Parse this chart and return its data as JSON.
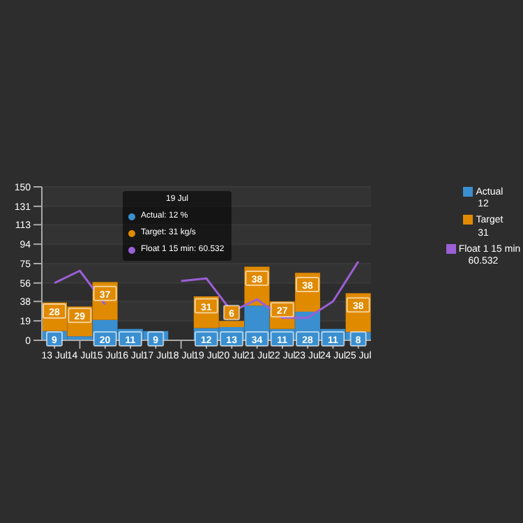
{
  "chart_data": {
    "type": "bar",
    "stacked": true,
    "categories": [
      "13 Jul",
      "14 Jul",
      "15 Jul",
      "16 Jul",
      "17 Jul",
      "18 Jul",
      "19 Jul",
      "20 Jul",
      "21 Jul",
      "22 Jul",
      "23 Jul",
      "24 Jul",
      "25 Jul"
    ],
    "series": [
      {
        "name": "Actual",
        "color": "#3a8fd0",
        "values": [
          9,
          4,
          20,
          11,
          9,
          null,
          12,
          13,
          34,
          11,
          28,
          11,
          8
        ],
        "value_labels": [
          "9",
          null,
          "20",
          "11",
          "9",
          null,
          "12",
          "13",
          "34",
          "11",
          "28",
          "11",
          "8"
        ]
      },
      {
        "name": "Target",
        "color": "#e08a00",
        "values": [
          28,
          29,
          37,
          null,
          null,
          null,
          31,
          6,
          38,
          27,
          38,
          null,
          38
        ],
        "value_labels": [
          "28",
          "29",
          "37",
          null,
          null,
          null,
          "31",
          "6",
          "38",
          "27",
          "38",
          null,
          "38"
        ]
      },
      {
        "name": "Float 1 15 min",
        "type": "line",
        "color": "#9b5fd6",
        "values": [
          56,
          68,
          35,
          null,
          null,
          58,
          60.532,
          28,
          40,
          22,
          22,
          38,
          77
        ]
      }
    ],
    "ylim": [
      0,
      150
    ],
    "yticks": [
      0,
      19,
      38,
      56,
      75,
      94,
      113,
      131,
      150
    ],
    "grid": "y",
    "legend": "right",
    "marker": "none",
    "annotations": [
      "19 Jul",
      "Actual: 12 %",
      "Target: 31 kg/s",
      "Float 1 15 min: 60.532",
      "12",
      "31",
      "60.532"
    ]
  }
}
